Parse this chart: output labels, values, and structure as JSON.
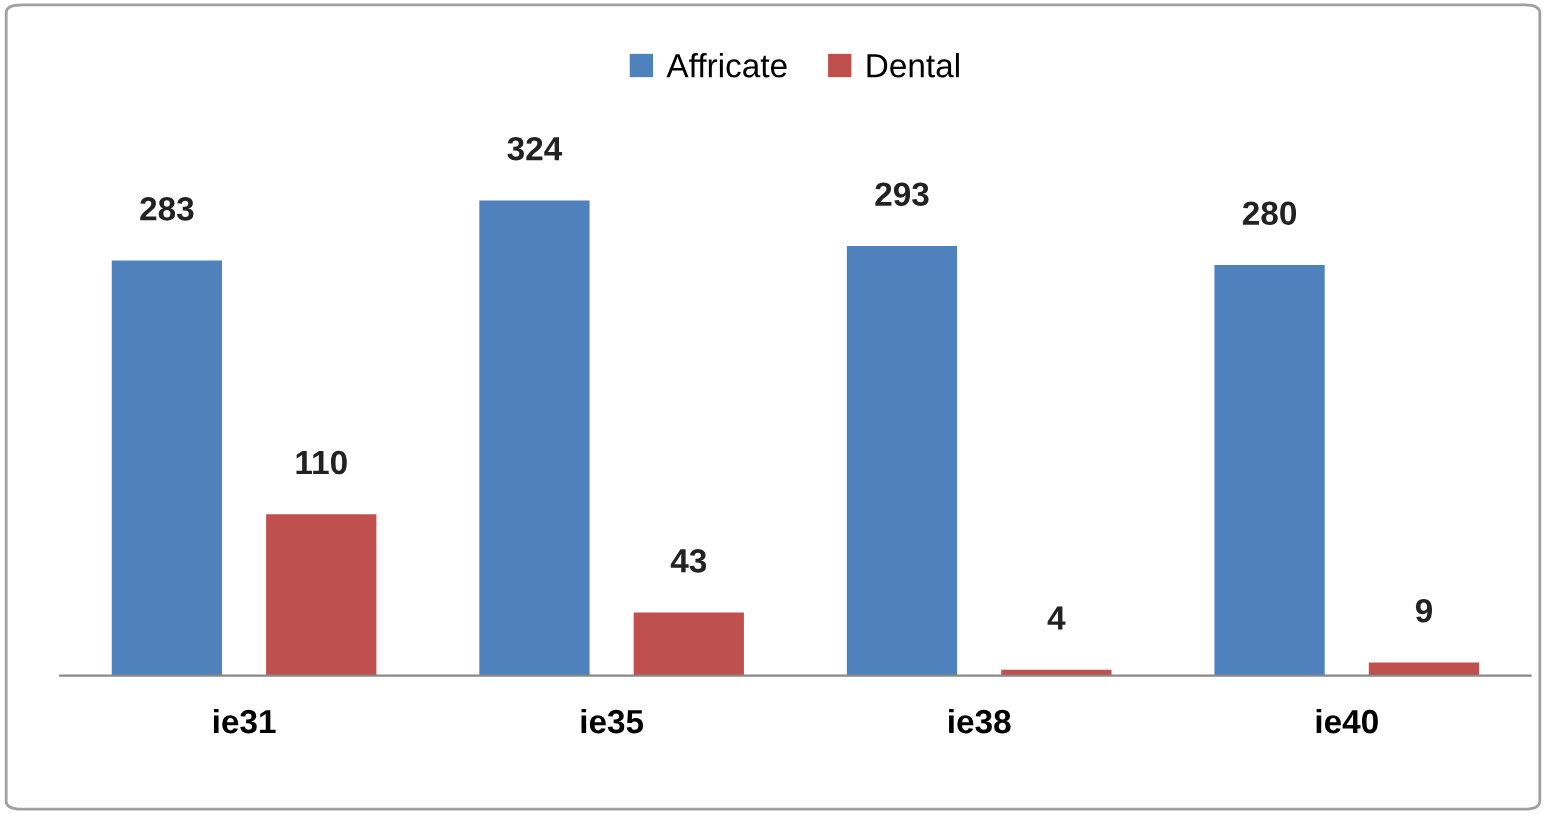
{
  "chart_data": {
    "type": "bar",
    "categories": [
      "ie31",
      "ie35",
      "ie38",
      "ie40"
    ],
    "series": [
      {
        "name": "Affricate",
        "color": "#4f81bd",
        "values": [
          283,
          324,
          293,
          280
        ]
      },
      {
        "name": "Dental",
        "color": "#c0504d",
        "values": [
          110,
          43,
          4,
          9
        ]
      }
    ],
    "data_labels": true,
    "legend": "top",
    "grid": false
  }
}
